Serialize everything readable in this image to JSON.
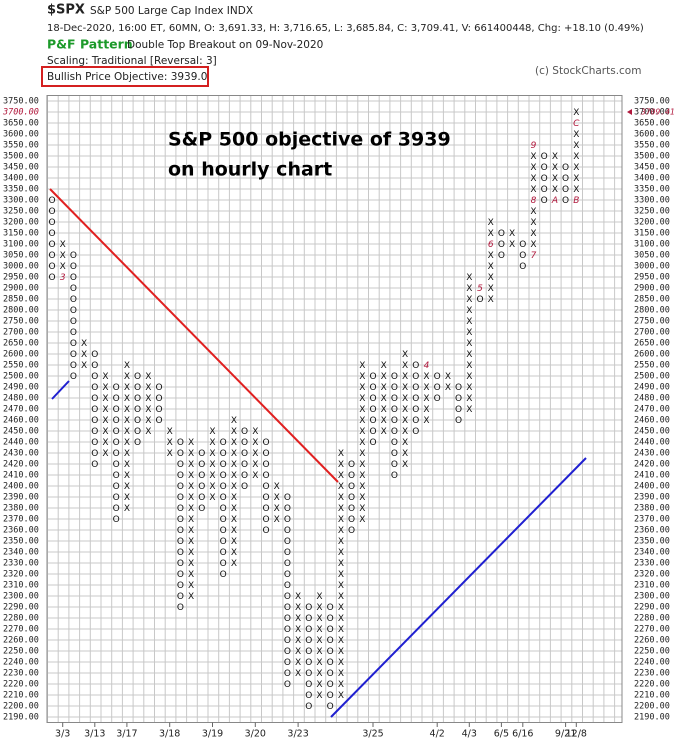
{
  "chart_data": {
    "type": "pnf",
    "symbol": "$SPX",
    "name": "S&P 500 Large Cap Index  INDX",
    "quote": "18-Dec-2020, 16:00 ET, 60MN, O: 3,691.33, H: 3,716.65, L: 3,685.84, C: 3,709.41, V: 661400448, Chg: +18.10 (0.49%)",
    "pattern_label": "P&F Pattern",
    "pattern": "Double Top Breakout on 09-Nov-2020",
    "scaling": "Scaling: Traditional [Reversal: 3]",
    "copyright": "(c) StockCharts.com",
    "objective": "Bullish Price Objective: 3939.0",
    "annotation": [
      "S&P 500 objective of 3939",
      "on hourly chart"
    ],
    "last_price": 3709.41,
    "current_box": 3700,
    "grid": true,
    "yticks": [
      {
        "value": 3750,
        "label": "3750.00"
      },
      {
        "value": 3700,
        "label": "3700.00"
      },
      {
        "value": 3650,
        "label": "3650.00"
      },
      {
        "value": 3600,
        "label": "3600.00"
      },
      {
        "value": 3550,
        "label": "3550.00"
      },
      {
        "value": 3500,
        "label": "3500.00"
      },
      {
        "value": 3450,
        "label": "3450.00"
      },
      {
        "value": 3400,
        "label": "3400.00"
      },
      {
        "value": 3350,
        "label": "3350.00"
      },
      {
        "value": 3300,
        "label": "3300.00"
      },
      {
        "value": 3250,
        "label": "3250.00"
      },
      {
        "value": 3200,
        "label": "3200.00"
      },
      {
        "value": 3150,
        "label": "3150.00"
      },
      {
        "value": 3100,
        "label": "3100.00"
      },
      {
        "value": 3050,
        "label": "3050.00"
      },
      {
        "value": 3000,
        "label": "3000.00"
      },
      {
        "value": 2950,
        "label": "2950.00"
      },
      {
        "value": 2900,
        "label": "2900.00"
      },
      {
        "value": 2850,
        "label": "2850.00"
      },
      {
        "value": 2800,
        "label": "2800.00"
      },
      {
        "value": 2750,
        "label": "2750.00"
      },
      {
        "value": 2700,
        "label": "2700.00"
      },
      {
        "value": 2650,
        "label": "2650.00"
      },
      {
        "value": 2600,
        "label": "2600.00"
      },
      {
        "value": 2550,
        "label": "2550.00"
      },
      {
        "value": 2500,
        "label": "2500.00"
      },
      {
        "value": 2490,
        "label": "2490.00"
      },
      {
        "value": 2480,
        "label": "2480.00"
      },
      {
        "value": 2470,
        "label": "2470.00"
      },
      {
        "value": 2460,
        "label": "2460.00"
      },
      {
        "value": 2450,
        "label": "2450.00"
      },
      {
        "value": 2440,
        "label": "2440.00"
      },
      {
        "value": 2430,
        "label": "2430.00"
      },
      {
        "value": 2420,
        "label": "2420.00"
      },
      {
        "value": 2410,
        "label": "2410.00"
      },
      {
        "value": 2400,
        "label": "2400.00"
      },
      {
        "value": 2390,
        "label": "2390.00"
      },
      {
        "value": 2380,
        "label": "2380.00"
      },
      {
        "value": 2370,
        "label": "2370.00"
      },
      {
        "value": 2360,
        "label": "2360.00"
      },
      {
        "value": 2350,
        "label": "2350.00"
      },
      {
        "value": 2340,
        "label": "2340.00"
      },
      {
        "value": 2330,
        "label": "2330.00"
      },
      {
        "value": 2320,
        "label": "2320.00"
      },
      {
        "value": 2310,
        "label": "2310.00"
      },
      {
        "value": 2300,
        "label": "2300.00"
      },
      {
        "value": 2290,
        "label": "2290.00"
      },
      {
        "value": 2280,
        "label": "2280.00"
      },
      {
        "value": 2270,
        "label": "2270.00"
      },
      {
        "value": 2260,
        "label": "2260.00"
      },
      {
        "value": 2250,
        "label": "2250.00"
      },
      {
        "value": 2240,
        "label": "2240.00"
      },
      {
        "value": 2230,
        "label": "2230.00"
      },
      {
        "value": 2220,
        "label": "2220.00"
      },
      {
        "value": 2210,
        "label": "2210.00"
      },
      {
        "value": 2200,
        "label": "2200.00"
      },
      {
        "value": 2190,
        "label": "2190.00"
      }
    ],
    "categories": [
      null,
      "3/3",
      null,
      null,
      "3/13",
      null,
      null,
      "3/17",
      null,
      null,
      null,
      "3/18",
      null,
      null,
      null,
      "3/19",
      null,
      null,
      null,
      "3/20",
      null,
      null,
      null,
      "3/23",
      null,
      null,
      null,
      null,
      null,
      null,
      "3/25",
      null,
      null,
      null,
      null,
      null,
      "4/2",
      null,
      null,
      "4/3",
      null,
      null,
      "6/5",
      null,
      "6/16",
      null,
      null,
      null,
      "9/21",
      "12/8"
    ],
    "columns": [
      {
        "type": "O",
        "high": 3300,
        "low": 2950
      },
      {
        "type": "X",
        "high": 3100,
        "low": 2950,
        "markers": [
          {
            "value": 2950,
            "label": "3"
          }
        ]
      },
      {
        "type": "O",
        "high": 3050,
        "low": 2500
      },
      {
        "type": "X",
        "high": 2650,
        "low": 2550
      },
      {
        "type": "O",
        "high": 2600,
        "low": 2420
      },
      {
        "type": "X",
        "high": 2500,
        "low": 2430
      },
      {
        "type": "O",
        "high": 2490,
        "low": 2370
      },
      {
        "type": "X",
        "high": 2550,
        "low": 2380
      },
      {
        "type": "O",
        "high": 2500,
        "low": 2440
      },
      {
        "type": "X",
        "high": 2500,
        "low": 2450
      },
      {
        "type": "O",
        "high": 2490,
        "low": 2460
      },
      {
        "type": "X",
        "high": 2450,
        "low": 2430
      },
      {
        "type": "O",
        "high": 2440,
        "low": 2290
      },
      {
        "type": "X",
        "high": 2440,
        "low": 2300
      },
      {
        "type": "O",
        "high": 2430,
        "low": 2380
      },
      {
        "type": "X",
        "high": 2450,
        "low": 2390
      },
      {
        "type": "O",
        "high": 2440,
        "low": 2320
      },
      {
        "type": "X",
        "high": 2460,
        "low": 2330
      },
      {
        "type": "O",
        "high": 2450,
        "low": 2400
      },
      {
        "type": "X",
        "high": 2450,
        "low": 2410
      },
      {
        "type": "O",
        "high": 2440,
        "low": 2360
      },
      {
        "type": "X",
        "high": 2400,
        "low": 2370
      },
      {
        "type": "O",
        "high": 2390,
        "low": 2220
      },
      {
        "type": "X",
        "high": 2300,
        "low": 2230
      },
      {
        "type": "O",
        "high": 2290,
        "low": 2200
      },
      {
        "type": "X",
        "high": 2300,
        "low": 2210
      },
      {
        "type": "O",
        "high": 2290,
        "low": 2200
      },
      {
        "type": "X",
        "high": 2430,
        "low": 2210
      },
      {
        "type": "O",
        "high": 2420,
        "low": 2360
      },
      {
        "type": "X",
        "high": 2550,
        "low": 2370
      },
      {
        "type": "O",
        "high": 2500,
        "low": 2440
      },
      {
        "type": "X",
        "high": 2550,
        "low": 2450
      },
      {
        "type": "O",
        "high": 2500,
        "low": 2410
      },
      {
        "type": "X",
        "high": 2600,
        "low": 2420
      },
      {
        "type": "O",
        "high": 2550,
        "low": 2450
      },
      {
        "type": "X",
        "high": 2550,
        "low": 2460,
        "markers": [
          {
            "value": 2550,
            "label": "4"
          }
        ]
      },
      {
        "type": "O",
        "high": 2500,
        "low": 2480
      },
      {
        "type": "X",
        "high": 2500,
        "low": 2490
      },
      {
        "type": "O",
        "high": 2490,
        "low": 2460
      },
      {
        "type": "X",
        "high": 2950,
        "low": 2470
      },
      {
        "type": "O",
        "high": 2900,
        "low": 2850,
        "markers": [
          {
            "value": 2900,
            "label": "5"
          }
        ]
      },
      {
        "type": "X",
        "high": 3200,
        "low": 2850,
        "markers": [
          {
            "value": 3100,
            "label": "6"
          }
        ]
      },
      {
        "type": "O",
        "high": 3150,
        "low": 3050
      },
      {
        "type": "X",
        "high": 3150,
        "low": 3100
      },
      {
        "type": "O",
        "high": 3100,
        "low": 3000
      },
      {
        "type": "X",
        "high": 3550,
        "low": 3050,
        "markers": [
          {
            "value": 3050,
            "label": "7"
          },
          {
            "value": 3300,
            "label": "8"
          },
          {
            "value": 3550,
            "label": "9"
          }
        ]
      },
      {
        "type": "O",
        "high": 3500,
        "low": 3300
      },
      {
        "type": "X",
        "high": 3500,
        "low": 3300,
        "markers": [
          {
            "value": 3300,
            "label": "A"
          }
        ]
      },
      {
        "type": "O",
        "high": 3450,
        "low": 3300
      },
      {
        "type": "X",
        "high": 3700,
        "low": 3300,
        "markers": [
          {
            "value": 3300,
            "label": "B"
          },
          {
            "value": 3650,
            "label": "C"
          }
        ]
      }
    ]
  }
}
